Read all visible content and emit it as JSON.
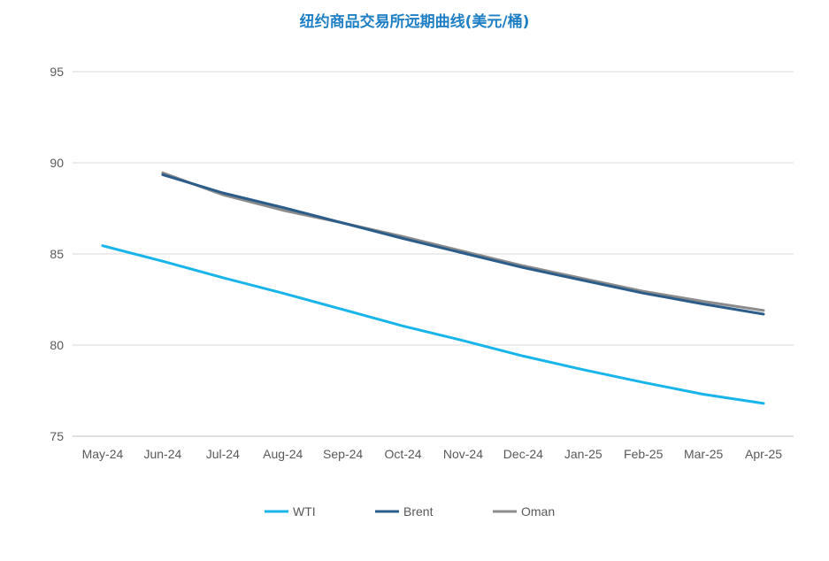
{
  "chart_data": {
    "type": "line",
    "title": "纽约商品交易所远期曲线(美元/桶)",
    "xlabel": "",
    "ylabel": "",
    "categories": [
      "May-24",
      "Jun-24",
      "Jul-24",
      "Aug-24",
      "Sep-24",
      "Oct-24",
      "Nov-24",
      "Dec-24",
      "Jan-25",
      "Feb-25",
      "Mar-25",
      "Apr-25"
    ],
    "y_ticks": [
      "75",
      "80",
      "85",
      "90",
      "95"
    ],
    "ylim": [
      75,
      95
    ],
    "grid": true,
    "legend_position": "bottom",
    "series": [
      {
        "name": "WTI",
        "color": "#19b4ea",
        "values": [
          85.45,
          84.6,
          83.7,
          82.85,
          81.95,
          81.05,
          80.25,
          79.4,
          78.65,
          77.95,
          77.3,
          76.8
        ]
      },
      {
        "name": "Brent",
        "color": "#2b5c8a",
        "values": [
          null,
          89.35,
          88.35,
          87.55,
          86.7,
          85.85,
          85.05,
          84.25,
          83.55,
          82.85,
          82.25,
          81.7
        ]
      },
      {
        "name": "Oman",
        "color": "#8c8c8c",
        "values": [
          null,
          89.45,
          88.25,
          87.4,
          86.7,
          85.95,
          85.15,
          84.35,
          83.65,
          82.95,
          82.4,
          81.9
        ]
      }
    ]
  }
}
